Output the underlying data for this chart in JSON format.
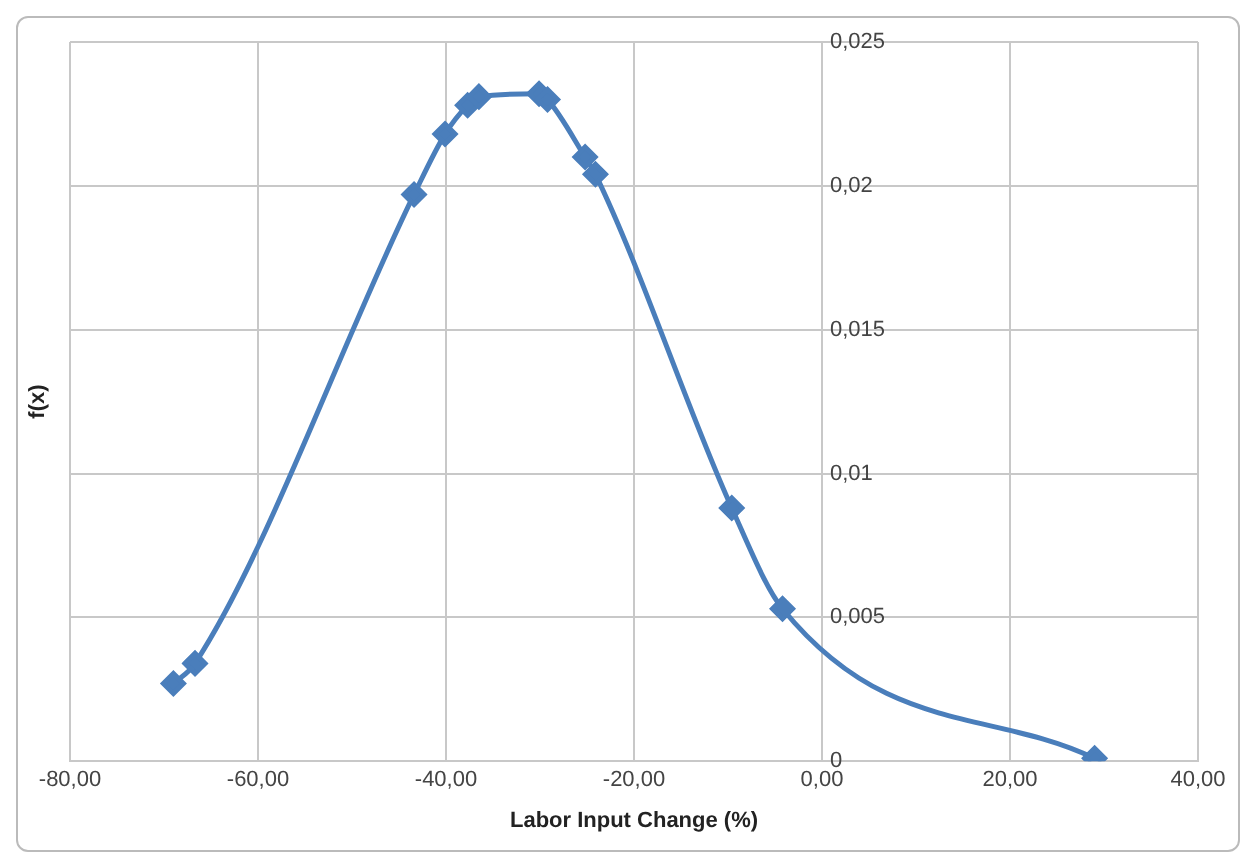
{
  "chart_data": {
    "type": "line",
    "xlabel": "Labor Input Change (%)",
    "ylabel": "f(x)",
    "series": [
      {
        "color": "#4a7ebb",
        "x": [
          -69.0,
          -66.7,
          -43.4,
          -40.1,
          -37.7,
          -36.5,
          -30.1,
          -29.2,
          -25.2,
          -24.1,
          -9.6,
          -4.2,
          29.0
        ],
        "values": [
          0.0027,
          0.0034,
          0.0197,
          0.0218,
          0.0228,
          0.0231,
          0.0232,
          0.023,
          0.021,
          0.0204,
          0.0088,
          0.0053,
          0.0001
        ]
      }
    ],
    "xlim": [
      -80,
      40
    ],
    "xticks": [
      {
        "value": -80,
        "label": "-80,00"
      },
      {
        "value": -60,
        "label": "-60,00"
      },
      {
        "value": -40,
        "label": "-40,00"
      },
      {
        "value": -20,
        "label": "-20,00"
      },
      {
        "value": 0,
        "label": "0,00"
      },
      {
        "value": 20,
        "label": "20,00"
      },
      {
        "value": 40,
        "label": "40,00"
      }
    ],
    "ylim": [
      0,
      0.025
    ],
    "yticks": [
      0,
      {
        "value": 0.005,
        "label": "0,005"
      },
      {
        "value": 0.01,
        "label": "0,01"
      },
      {
        "value": 0.015,
        "label": "0,015"
      },
      {
        "value": 0.02,
        "label": "0,02"
      },
      {
        "value": 0.025,
        "label": "0,025"
      }
    ],
    "grid": true,
    "legend": false,
    "marker": "diamond",
    "line_style": "solid"
  }
}
